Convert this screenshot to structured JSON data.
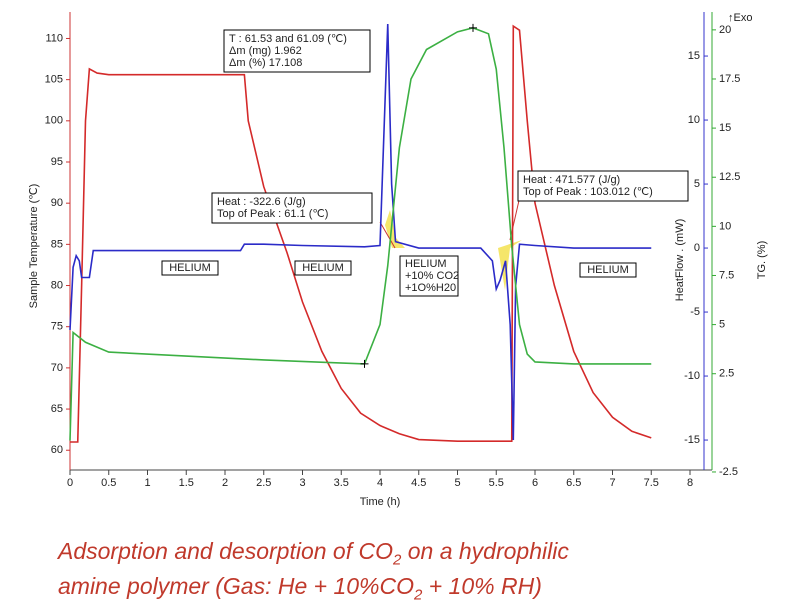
{
  "chart_data": {
    "type": "line",
    "xlabel": "Time (h)",
    "ylabel": "Sample Temperature (℃)",
    "y2label": "HeatFlow . (mW)",
    "y3label": "TG. (%)",
    "exo_label": "↑Exo",
    "xlim": [
      0,
      8
    ],
    "xticks": [
      0,
      0.5,
      1,
      1.5,
      2,
      2.5,
      3,
      3.5,
      4,
      4.5,
      5,
      5.5,
      6,
      6.5,
      7,
      7.5,
      8
    ],
    "ylim": [
      57.6,
      112
    ],
    "yticks": [
      60,
      65,
      70,
      75,
      80,
      85,
      90,
      95,
      100,
      105,
      110
    ],
    "y2lim": [
      -17.34,
      17.66
    ],
    "y2ticks": [
      -15,
      -10,
      -5,
      0,
      5,
      10,
      15
    ],
    "y3lim": [
      -2.4,
      20.4
    ],
    "y3ticks": [
      -2.5,
      2.5,
      5,
      7.5,
      10,
      12.5,
      15,
      17.5,
      20
    ],
    "series": [
      {
        "name": "Sample Temperature",
        "color": "#d42a2a",
        "axis": "y",
        "x": [
          0,
          0.1,
          0.15,
          0.2,
          0.25,
          0.35,
          0.5,
          1,
          2.25,
          2.3,
          2.5,
          2.8,
          3,
          3.25,
          3.5,
          3.75,
          4,
          4.25,
          4.5,
          5,
          5.5,
          5.7,
          5.72,
          5.8,
          5.9,
          6,
          6.25,
          6.5,
          6.75,
          7,
          7.25,
          7.5
        ],
        "values": [
          61,
          61,
          80,
          100,
          106.3,
          105.8,
          105.6,
          105.6,
          105.6,
          100,
          92,
          84,
          78,
          72,
          67.5,
          64.5,
          63,
          62,
          61.3,
          61.1,
          61.1,
          61.1,
          111.5,
          111,
          100,
          90,
          80,
          72,
          67,
          64,
          62.3,
          61.5
        ]
      },
      {
        "name": "HeatFlow",
        "color": "#2b2bc8",
        "axis": "y2",
        "x": [
          0,
          0.04,
          0.08,
          0.12,
          0.15,
          0.25,
          0.3,
          1,
          2.2,
          2.25,
          2.5,
          3,
          3.8,
          4,
          4.1,
          4.15,
          4.2,
          4.5,
          5,
          5.3,
          5.45,
          5.5,
          5.55,
          5.62,
          5.68,
          5.72,
          5.75,
          5.8,
          6,
          6.5,
          7.5
        ],
        "values": [
          -6.4,
          -1.5,
          -0.6,
          -1,
          -2.3,
          -2.3,
          -0.2,
          -0.2,
          -0.2,
          0.3,
          0.3,
          0.2,
          0.1,
          0.2,
          17.5,
          5,
          0.5,
          0,
          0,
          0,
          -1,
          -3.2,
          -2.5,
          -1,
          -6,
          -15,
          -3,
          0.3,
          0.2,
          0,
          0
        ]
      },
      {
        "name": "TG",
        "color": "#3cb043",
        "axis": "y3",
        "x": [
          0,
          0.04,
          0.2,
          0.5,
          1.5,
          2.5,
          3.8,
          4,
          4.1,
          4.25,
          4.4,
          4.6,
          5,
          5.2,
          5.4,
          5.5,
          5.6,
          5.7,
          5.8,
          5.9,
          6,
          6.5,
          7.5
        ],
        "values": [
          -0.9,
          4.6,
          4.1,
          3.6,
          3.4,
          3.2,
          3,
          5,
          8,
          14,
          17.5,
          19,
          19.9,
          20.1,
          19.8,
          18,
          14,
          9,
          5,
          3.5,
          3.1,
          3,
          3
        ]
      }
    ],
    "annotations": {
      "mass_box": [
        "T : 61.53 and 61.09 (℃)",
        "Δm (mg) 1.962",
        "Δm (%) 17.108"
      ],
      "ads_box": [
        "Heat : -322.6 (J/g)",
        "Top of Peak : 61.1 (℃)"
      ],
      "des_box": [
        "Heat : 471.577 (J/g)",
        "Top of Peak : 103.012 (℃)"
      ],
      "gas_labels": [
        "HELIUM",
        "HELIUM",
        "HELIUM",
        "+10% CO2",
        "+1O%H20",
        "HELIUM"
      ]
    },
    "caption": [
      [
        "Adsorption and desorption of CO",
        "2",
        " on a hydrophilic"
      ],
      [
        "amine polymer (Gas: He + 10%CO",
        "2",
        " + 10% RH)"
      ]
    ]
  }
}
